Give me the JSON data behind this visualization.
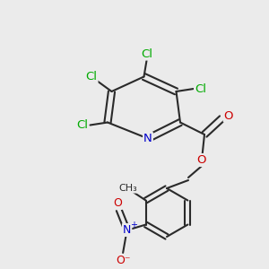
{
  "background_color": "#ebebeb",
  "bond_color": "#2a2a2a",
  "bond_width": 1.5,
  "atom_colors": {
    "Cl": "#00aa00",
    "N": "#0000cc",
    "O": "#cc0000",
    "C": "#2a2a2a"
  }
}
